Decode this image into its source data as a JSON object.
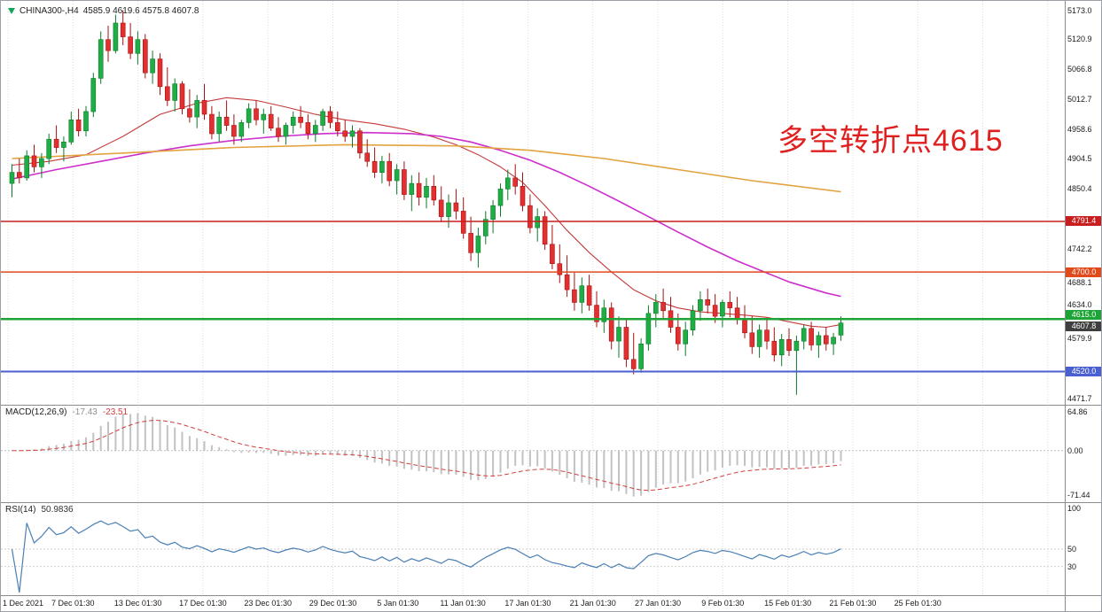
{
  "header": {
    "symbol_timeframe": "CHINA300-,H4",
    "ohlc": "4585.9 4619.6 4575.8 4607.8"
  },
  "annotation": {
    "text": "多空转折点4615",
    "color": "#e01f1f"
  },
  "colors": {
    "background": "#ffffff",
    "grid": "#dcdcdc",
    "separator": "#8c8c8c",
    "candle_up": "#1fae45",
    "candle_up_border": "#0c7a2a",
    "candle_down": "#e32f2f",
    "candle_down_border": "#a31212",
    "macd_hist": "#c2c2c2",
    "macd_signal": "#d04040",
    "rsi_line": "#4a7fb5",
    "scale_text": "#1a1a1a",
    "badge_text": "#ffffff"
  },
  "chart_data": {
    "type": "candlestick",
    "symbol": "CHINA300-",
    "timeframe": "H4",
    "main": {
      "price_range": [
        4460,
        5190
      ],
      "scale_labels": [
        "5173.0",
        "5120.9",
        "5066.8",
        "5012.7",
        "4958.6",
        "4904.5",
        "4850.4",
        "4742.2",
        "4688.1",
        "4634.0",
        "4579.9",
        "4471.7"
      ],
      "hlines": [
        {
          "price": 4791.4,
          "label": "4791.4",
          "color": "#c81e1e",
          "width": 1.5,
          "badge_dy": 0
        },
        {
          "price": 4700.0,
          "label": "4700.0",
          "color": "#e2491b",
          "width": 1.5,
          "badge_dy": 0
        },
        {
          "price": 4615.0,
          "label": "4615.0",
          "color": "#1ea336",
          "width": 2.5,
          "badge_dy": -5
        },
        {
          "price": 4520.0,
          "label": "4520.0",
          "color": "#4a5fd0",
          "width": 2,
          "badge_dy": 0
        }
      ],
      "current_price": {
        "price": 4607.8,
        "label": "4607.8",
        "bg": "#3f3f3f",
        "badge_dy": 4
      },
      "ma_lines": [
        {
          "name": "fast-red",
          "color": "#c43a3a",
          "width": 1.1,
          "points": [
            [
              0,
              4893
            ],
            [
              5,
              4900
            ],
            [
              10,
              4912
            ],
            [
              15,
              4945
            ],
            [
              20,
              4985
            ],
            [
              25,
              5005
            ],
            [
              29,
              5015
            ],
            [
              33,
              5010
            ],
            [
              37,
              4998
            ],
            [
              41,
              4985
            ],
            [
              45,
              4975
            ],
            [
              49,
              4968
            ],
            [
              53,
              4958
            ],
            [
              57,
              4944
            ],
            [
              60,
              4930
            ],
            [
              63,
              4912
            ],
            [
              66,
              4890
            ],
            [
              69,
              4862
            ],
            [
              72,
              4820
            ],
            [
              75,
              4775
            ],
            [
              78,
              4735
            ],
            [
              81,
              4700
            ],
            [
              84,
              4668
            ],
            [
              87,
              4648
            ],
            [
              90,
              4635
            ],
            [
              93,
              4628
            ],
            [
              96,
              4625
            ],
            [
              99,
              4622
            ],
            [
              102,
              4618
            ],
            [
              105,
              4610
            ],
            [
              108,
              4602
            ],
            [
              110,
              4600
            ],
            [
              112,
              4605
            ]
          ]
        },
        {
          "name": "medium-magenta",
          "color": "#cc2fcc",
          "width": 1.6,
          "points": [
            [
              0,
              4868
            ],
            [
              6,
              4885
            ],
            [
              12,
              4900
            ],
            [
              18,
              4915
            ],
            [
              24,
              4928
            ],
            [
              30,
              4938
            ],
            [
              36,
              4945
            ],
            [
              42,
              4950
            ],
            [
              48,
              4952
            ],
            [
              54,
              4950
            ],
            [
              58,
              4945
            ],
            [
              62,
              4935
            ],
            [
              66,
              4920
            ],
            [
              70,
              4902
            ],
            [
              74,
              4880
            ],
            [
              78,
              4855
            ],
            [
              82,
              4828
            ],
            [
              86,
              4800
            ],
            [
              90,
              4772
            ],
            [
              94,
              4745
            ],
            [
              98,
              4720
            ],
            [
              102,
              4698
            ],
            [
              105,
              4682
            ],
            [
              108,
              4670
            ],
            [
              110,
              4662
            ],
            [
              112,
              4656
            ]
          ]
        },
        {
          "name": "slow-orange",
          "color": "#e2a23e",
          "width": 1.6,
          "points": [
            [
              0,
              4905
            ],
            [
              15,
              4915
            ],
            [
              30,
              4925
            ],
            [
              45,
              4930
            ],
            [
              60,
              4928
            ],
            [
              70,
              4920
            ],
            [
              80,
              4905
            ],
            [
              90,
              4885
            ],
            [
              100,
              4865
            ],
            [
              112,
              4845
            ]
          ]
        }
      ],
      "candles": [
        [
          4860,
          4895,
          4835,
          4880
        ],
        [
          4880,
          4905,
          4860,
          4870
        ],
        [
          4870,
          4920,
          4865,
          4910
        ],
        [
          4910,
          4930,
          4880,
          4890
        ],
        [
          4890,
          4915,
          4870,
          4905
        ],
        [
          4905,
          4950,
          4895,
          4940
        ],
        [
          4940,
          4965,
          4915,
          4925
        ],
        [
          4925,
          4945,
          4900,
          4935
        ],
        [
          4935,
          4990,
          4930,
          4975
        ],
        [
          4975,
          4995,
          4945,
          4955
        ],
        [
          4955,
          5000,
          4945,
          4990
        ],
        [
          4990,
          5060,
          4980,
          5050
        ],
        [
          5050,
          5135,
          5040,
          5120
        ],
        [
          5120,
          5145,
          5080,
          5100
        ],
        [
          5100,
          5165,
          5095,
          5150
        ],
        [
          5150,
          5173,
          5110,
          5125
        ],
        [
          5125,
          5150,
          5085,
          5095
        ],
        [
          5095,
          5135,
          5075,
          5120
        ],
        [
          5120,
          5130,
          5050,
          5060
        ],
        [
          5060,
          5100,
          5040,
          5085
        ],
        [
          5085,
          5095,
          5020,
          5035
        ],
        [
          5035,
          5070,
          5000,
          5010
        ],
        [
          5010,
          5050,
          4990,
          5040
        ],
        [
          5040,
          5045,
          4985,
          4995
        ],
        [
          4995,
          5030,
          4970,
          4980
        ],
        [
          4980,
          5020,
          4960,
          5010
        ],
        [
          5010,
          5040,
          4975,
          4985
        ],
        [
          4985,
          5000,
          4940,
          4950
        ],
        [
          4950,
          4990,
          4935,
          4980
        ],
        [
          4980,
          5010,
          4955,
          4965
        ],
        [
          4965,
          4985,
          4930,
          4945
        ],
        [
          4945,
          4975,
          4935,
          4970
        ],
        [
          4970,
          5005,
          4960,
          4995
        ],
        [
          4995,
          5010,
          4965,
          4975
        ],
        [
          4975,
          4995,
          4950,
          4985
        ],
        [
          4985,
          5000,
          4955,
          4960
        ],
        [
          4960,
          4980,
          4935,
          4945
        ],
        [
          4945,
          4970,
          4930,
          4965
        ],
        [
          4965,
          4990,
          4950,
          4980
        ],
        [
          4980,
          5000,
          4960,
          4970
        ],
        [
          4970,
          4985,
          4940,
          4950
        ],
        [
          4950,
          4975,
          4935,
          4965
        ],
        [
          4965,
          4995,
          4955,
          4990
        ],
        [
          4990,
          5000,
          4960,
          4970
        ],
        [
          4970,
          4990,
          4945,
          4955
        ],
        [
          4955,
          4975,
          4935,
          4945
        ],
        [
          4945,
          4965,
          4925,
          4955
        ],
        [
          4955,
          4960,
          4905,
          4915
        ],
        [
          4915,
          4940,
          4890,
          4900
        ],
        [
          4900,
          4925,
          4870,
          4880
        ],
        [
          4880,
          4910,
          4860,
          4900
        ],
        [
          4900,
          4915,
          4855,
          4865
        ],
        [
          4865,
          4895,
          4840,
          4885
        ],
        [
          4885,
          4900,
          4830,
          4840
        ],
        [
          4840,
          4875,
          4810,
          4860
        ],
        [
          4860,
          4880,
          4820,
          4835
        ],
        [
          4835,
          4870,
          4815,
          4855
        ],
        [
          4855,
          4875,
          4820,
          4830
        ],
        [
          4830,
          4855,
          4790,
          4800
        ],
        [
          4800,
          4840,
          4780,
          4825
        ],
        [
          4825,
          4850,
          4795,
          4810
        ],
        [
          4810,
          4835,
          4760,
          4770
        ],
        [
          4770,
          4800,
          4720,
          4735
        ],
        [
          4735,
          4780,
          4708,
          4765
        ],
        [
          4765,
          4810,
          4750,
          4795
        ],
        [
          4795,
          4830,
          4770,
          4820
        ],
        [
          4820,
          4860,
          4800,
          4850
        ],
        [
          4850,
          4885,
          4830,
          4870
        ],
        [
          4870,
          4895,
          4840,
          4855
        ],
        [
          4855,
          4880,
          4810,
          4820
        ],
        [
          4820,
          4840,
          4770,
          4780
        ],
        [
          4780,
          4815,
          4755,
          4800
        ],
        [
          4800,
          4810,
          4740,
          4750
        ],
        [
          4750,
          4785,
          4705,
          4715
        ],
        [
          4715,
          4750,
          4680,
          4695
        ],
        [
          4695,
          4730,
          4655,
          4668
        ],
        [
          4668,
          4700,
          4630,
          4645
        ],
        [
          4645,
          4690,
          4625,
          4675
        ],
        [
          4675,
          4695,
          4630,
          4640
        ],
        [
          4640,
          4665,
          4600,
          4610
        ],
        [
          4610,
          4650,
          4590,
          4635
        ],
        [
          4635,
          4645,
          4560,
          4575
        ],
        [
          4575,
          4620,
          4545,
          4600
        ],
        [
          4600,
          4615,
          4528,
          4542
        ],
        [
          4542,
          4590,
          4515,
          4525
        ],
        [
          4525,
          4580,
          4518,
          4570
        ],
        [
          4570,
          4640,
          4558,
          4625
        ],
        [
          4625,
          4660,
          4600,
          4645
        ],
        [
          4645,
          4670,
          4615,
          4630
        ],
        [
          4630,
          4655,
          4590,
          4600
        ],
        [
          4600,
          4625,
          4558,
          4570
        ],
        [
          4570,
          4610,
          4548,
          4595
        ],
        [
          4595,
          4640,
          4585,
          4630
        ],
        [
          4630,
          4665,
          4612,
          4650
        ],
        [
          4650,
          4670,
          4625,
          4640
        ],
        [
          4640,
          4660,
          4608,
          4620
        ],
        [
          4620,
          4650,
          4600,
          4645
        ],
        [
          4645,
          4665,
          4618,
          4635
        ],
        [
          4635,
          4655,
          4605,
          4615
        ],
        [
          4615,
          4640,
          4580,
          4590
        ],
        [
          4590,
          4620,
          4552,
          4565
        ],
        [
          4565,
          4605,
          4545,
          4595
        ],
        [
          4595,
          4615,
          4560,
          4575
        ],
        [
          4575,
          4600,
          4538,
          4550
        ],
        [
          4550,
          4588,
          4530,
          4578
        ],
        [
          4578,
          4598,
          4548,
          4558
        ],
        [
          4558,
          4585,
          4478,
          4575
        ],
        [
          4575,
          4605,
          4560,
          4598
        ],
        [
          4598,
          4610,
          4558,
          4568
        ],
        [
          4568,
          4592,
          4545,
          4585
        ],
        [
          4585,
          4600,
          4558,
          4570
        ],
        [
          4570,
          4590,
          4550,
          4582
        ],
        [
          4585.9,
          4619.6,
          4575.8,
          4607.8
        ]
      ]
    },
    "macd": {
      "label": "MACD(12,26,9)",
      "value_main": "-17.43",
      "value_signal": "-23.51",
      "params": [
        12,
        26,
        9
      ],
      "scale_labels": [
        "64.86",
        "0.00",
        "-71.44"
      ],
      "range": [
        -75,
        66
      ]
    },
    "rsi": {
      "label": "RSI(14)",
      "value": "50.9836",
      "period": 14,
      "scale_labels": [
        "100",
        "50",
        "30"
      ],
      "range": [
        0,
        100
      ]
    },
    "x_axis": {
      "labels": [
        "1 Dec 2021",
        "7 Dec 01:30",
        "13 Dec 01:30",
        "17 Dec 01:30",
        "23 Dec 01:30",
        "29 Dec 01:30",
        "5 Jan 01:30",
        "11 Jan 01:30",
        "17 Jan 01:30",
        "21 Jan 01:30",
        "27 Jan 01:30",
        "9 Feb 01:30",
        "15 Feb 01:30",
        "21 Feb 01:30",
        "25 Feb 01:30"
      ]
    }
  }
}
